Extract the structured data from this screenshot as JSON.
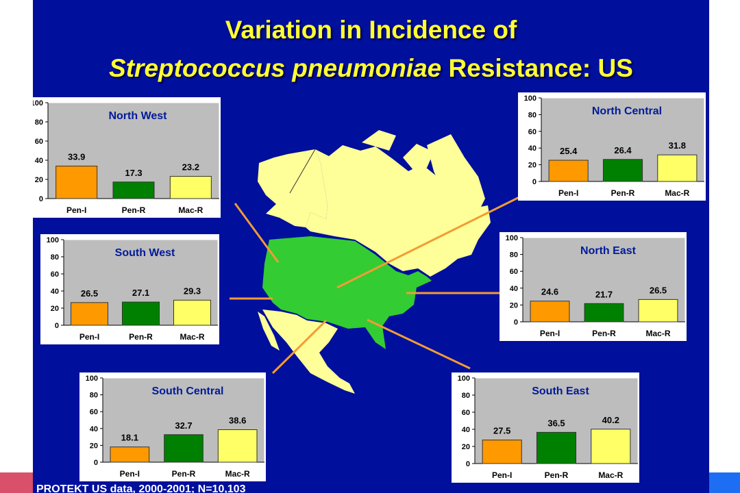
{
  "slide": {
    "title_line1": "Variation in Incidence of",
    "title_italic": "Streptococcus pneumoniae",
    "title_rest": " Resistance: US",
    "footer": "PROTEKT US data, 2000-2001; N=10,103"
  },
  "colors": {
    "background": "#000f9c",
    "title": "#ffff33",
    "pen_i": "#ff9900",
    "pen_r": "#008000",
    "mac_r": "#ffff66",
    "chart_panel": "#bdbdbd",
    "panel_title": "#001a99",
    "connector": "#f39c34",
    "us_land": "#33cc33",
    "other_land": "#ffff99"
  },
  "chart_data": [
    {
      "type": "bar",
      "title": "North West",
      "categories": [
        "Pen-I",
        "Pen-R",
        "Mac-R"
      ],
      "values": [
        33.9,
        17.3,
        23.2
      ],
      "value_labels": [
        "33.9",
        "17.3",
        "23.2"
      ],
      "ylim": [
        0,
        100
      ],
      "yticks": [
        "0",
        "20",
        "40",
        "60",
        "80",
        "100"
      ],
      "xlabel": "",
      "ylabel": "",
      "grid": false,
      "legend": "none"
    },
    {
      "type": "bar",
      "title": "North Central",
      "categories": [
        "Pen-I",
        "Pen-R",
        "Mac-R"
      ],
      "values": [
        25.4,
        26.4,
        31.8
      ],
      "value_labels": [
        "25.4",
        "26.4",
        "31.8"
      ],
      "ylim": [
        0,
        100
      ],
      "yticks": [
        "0",
        "20",
        "40",
        "60",
        "80",
        "100"
      ],
      "xlabel": "",
      "ylabel": "",
      "grid": false,
      "legend": "none"
    },
    {
      "type": "bar",
      "title": "South West",
      "categories": [
        "Pen-I",
        "Pen-R",
        "Mac-R"
      ],
      "values": [
        26.5,
        27.1,
        29.3
      ],
      "value_labels": [
        "26.5",
        "27.1",
        "29.3"
      ],
      "ylim": [
        0,
        100
      ],
      "yticks": [
        "0",
        "20",
        "40",
        "60",
        "80",
        "100"
      ],
      "xlabel": "",
      "ylabel": "",
      "grid": false,
      "legend": "none"
    },
    {
      "type": "bar",
      "title": "North East",
      "categories": [
        "Pen-I",
        "Pen-R",
        "Mac-R"
      ],
      "values": [
        24.6,
        21.7,
        26.5
      ],
      "value_labels": [
        "24.6",
        "21.7",
        "26.5"
      ],
      "ylim": [
        0,
        100
      ],
      "yticks": [
        "0",
        "20",
        "40",
        "60",
        "80",
        "100"
      ],
      "xlabel": "",
      "ylabel": "",
      "grid": false,
      "legend": "none"
    },
    {
      "type": "bar",
      "title": "South Central",
      "categories": [
        "Pen-I",
        "Pen-R",
        "Mac-R"
      ],
      "values": [
        18.1,
        32.7,
        38.6
      ],
      "value_labels": [
        "18.1",
        "32.7",
        "38.6"
      ],
      "ylim": [
        0,
        100
      ],
      "yticks": [
        "0",
        "20",
        "40",
        "60",
        "80",
        "100"
      ],
      "xlabel": "",
      "ylabel": "",
      "grid": false,
      "legend": "none"
    },
    {
      "type": "bar",
      "title": "South East",
      "categories": [
        "Pen-I",
        "Pen-R",
        "Mac-R"
      ],
      "values": [
        27.5,
        36.5,
        40.2
      ],
      "value_labels": [
        "27.5",
        "36.5",
        "40.2"
      ],
      "ylim": [
        0,
        100
      ],
      "yticks": [
        "0",
        "20",
        "40",
        "60",
        "80",
        "100"
      ],
      "xlabel": "",
      "ylabel": "",
      "grid": false,
      "legend": "none"
    }
  ]
}
